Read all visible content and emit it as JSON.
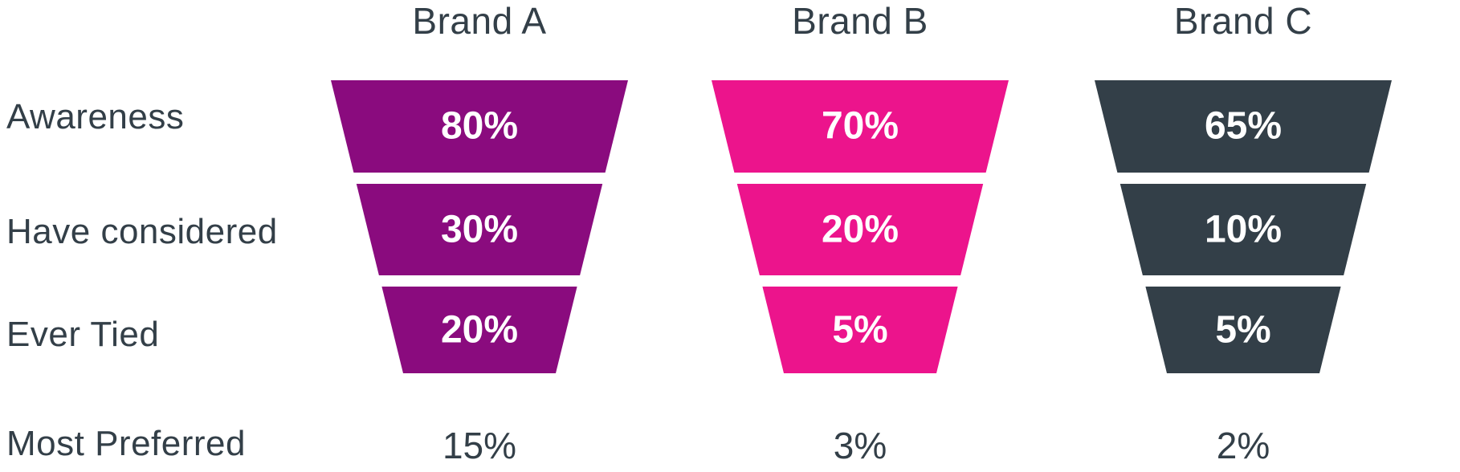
{
  "chart_data": {
    "type": "funnel",
    "title": "",
    "stages": [
      "Awareness",
      "Have considered",
      "Ever Tied",
      "Most Preferred"
    ],
    "series": [
      {
        "name": "Brand A",
        "color": "#8A0B7E",
        "values": [
          80,
          30,
          20
        ],
        "most_preferred": 15
      },
      {
        "name": "Brand B",
        "color": "#EC148C",
        "values": [
          70,
          20,
          5
        ],
        "most_preferred": 3
      },
      {
        "name": "Brand C",
        "color": "#333F48",
        "values": [
          65,
          10,
          5
        ],
        "most_preferred": 2
      }
    ],
    "unit": "%",
    "legend_position": "top (brand names above each funnel)",
    "layout": "three identical trapezoid funnels side by side, three segments each, stage labels on left, Most Preferred shown as plain text below funnels"
  },
  "stage_labels": [
    "Awareness",
    "Have considered",
    "Ever Tied",
    "Most Preferred"
  ],
  "columns": [
    {
      "title": "Brand A",
      "color": "#8A0B7E",
      "segments": [
        "80%",
        "30%",
        "20%"
      ],
      "most_preferred": "15%"
    },
    {
      "title": "Brand B",
      "color": "#EC148C",
      "segments": [
        "70%",
        "20%",
        "5%"
      ],
      "most_preferred": "3%"
    },
    {
      "title": "Brand C",
      "color": "#333F48",
      "segments": [
        "65%",
        "10%",
        "5%"
      ],
      "most_preferred": "2%"
    }
  ],
  "colors": {
    "text": "#333F48",
    "value_text": "#FFFFFF",
    "background": "#FFFFFF"
  }
}
